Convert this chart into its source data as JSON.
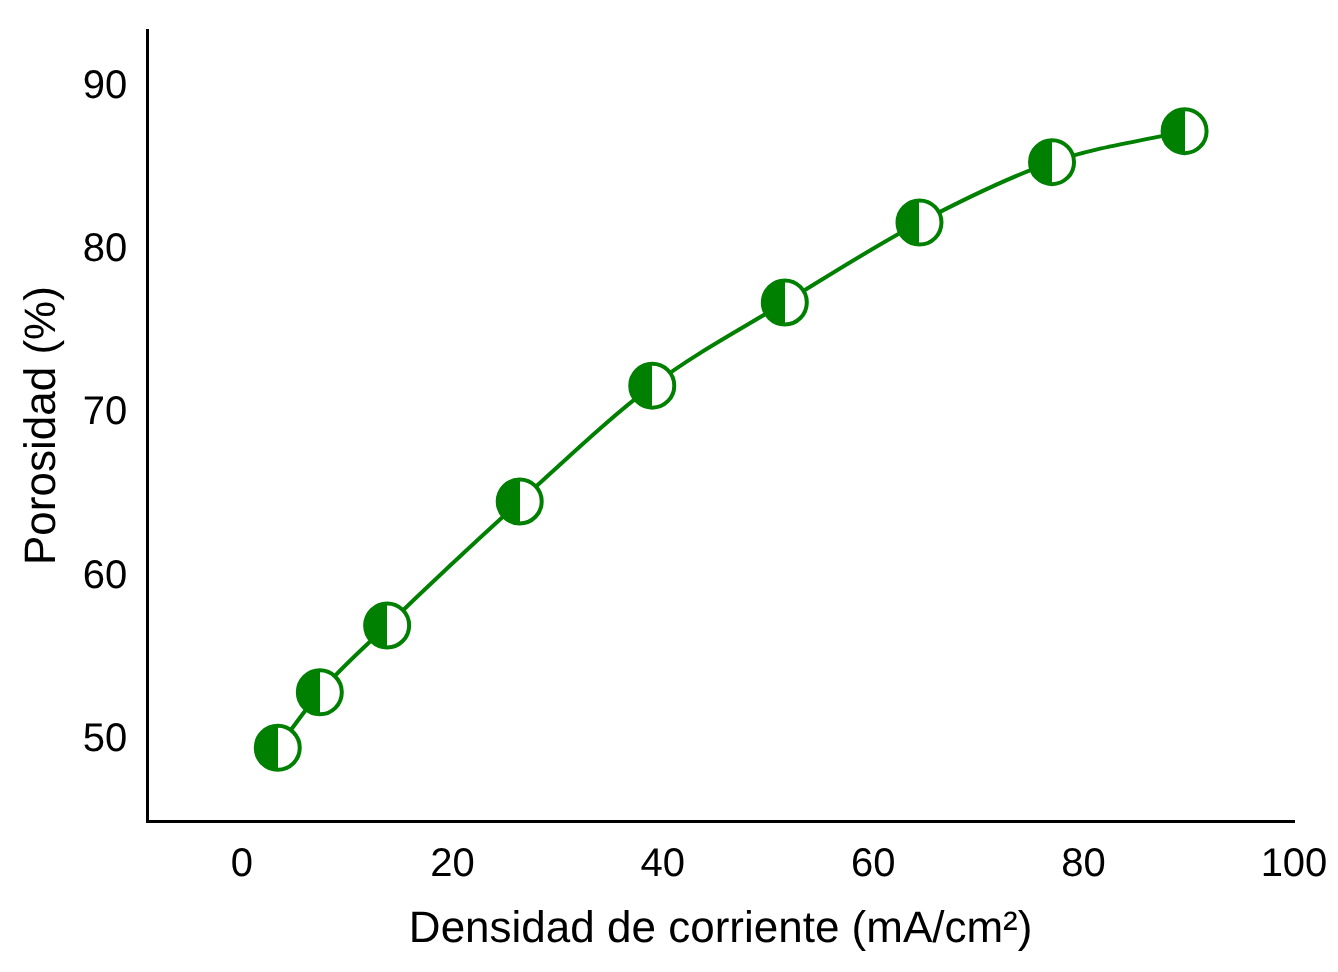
{
  "chart_data": {
    "type": "line",
    "xlabel": "Densidad de corriente (mA/cm²)",
    "ylabel": "Porosidad (%)",
    "x": [
      3.4,
      7.4,
      13.8,
      26.4,
      39,
      51.6,
      64.4,
      77,
      89.6
    ],
    "series": [
      {
        "color": "#008000",
        "values": [
          49.5,
          52.9,
          57.0,
          64.6,
          71.7,
          76.8,
          81.7,
          85.4,
          87.3
        ]
      }
    ],
    "xlim": [
      -9,
      100
    ],
    "xticks": [
      0,
      20,
      40,
      60,
      80,
      100
    ],
    "ylim": [
      45,
      93.5
    ],
    "yticks": [
      50,
      60,
      70,
      80,
      90
    ],
    "grid": false,
    "legend": false,
    "marker": "circle",
    "line_style": "solid"
  }
}
